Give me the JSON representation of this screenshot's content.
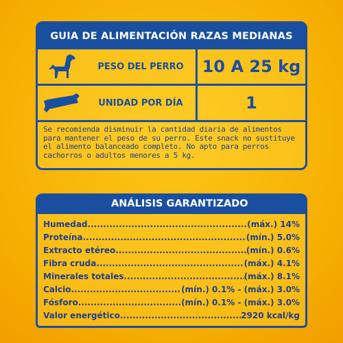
{
  "feeding_guide": {
    "title": "GUIA DE ALIMENTACIÓN RAZAS MEDIANAS",
    "rows": [
      {
        "label": "PESO DEL PERRO",
        "value": "10 A 25 kg"
      },
      {
        "label": "UNIDAD POR DÍA",
        "value": "1"
      }
    ],
    "note": "Se recomienda disminuir la cantidad diaria de alimentos para mantener el peso de su perro. Este snack no sustituye el alimento balanceado completo. No apto para perros cachorros o adultos menores a 5 kg."
  },
  "analysis": {
    "title": "ANÁLISIS GARANTIZADO",
    "rows": [
      {
        "label": "Humedad",
        "value": "(máx.) 14%"
      },
      {
        "label": "Proteína",
        "value": "(mín.) 5.0%"
      },
      {
        "label": "Extracto etéreo",
        "value": "(mín.) 0.6%"
      },
      {
        "label": "Fibra cruda",
        "value": "(máx.) 4.1%"
      },
      {
        "label": "Minerales totales",
        "value": "(máx.) 8.1%"
      },
      {
        "label": "Calcio",
        "value": "(mín.) 0.1% - (máx.) 3.0%"
      },
      {
        "label": "Fósforo",
        "value": "(mín.) 0.1% - (máx.) 3.0%"
      },
      {
        "label": "Valor energético",
        "value": "2920 kcal/kg"
      }
    ]
  }
}
